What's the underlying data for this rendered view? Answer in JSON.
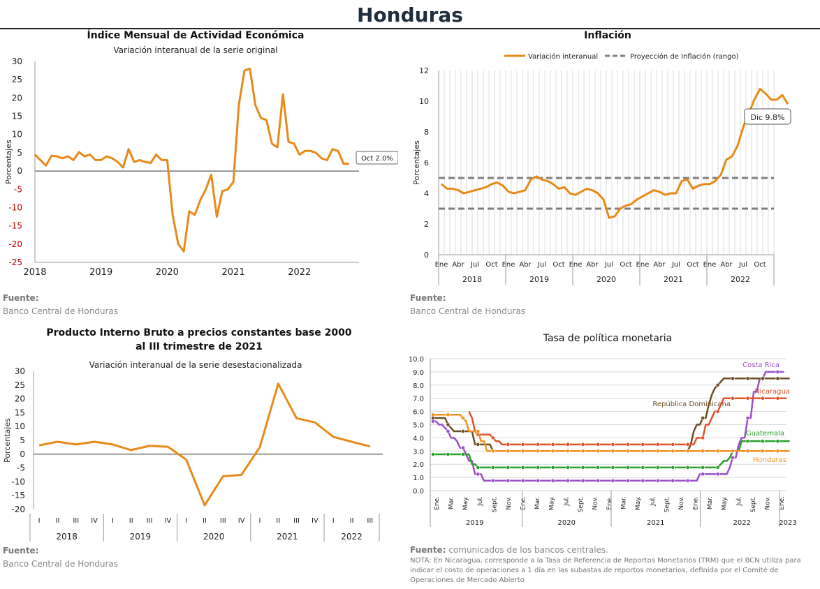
{
  "page": {
    "title": "Honduras"
  },
  "source_labels": {
    "fuente": "Fuente:",
    "bch": "Banco Central de Honduras",
    "tpm_source": "comunicados de los bancos centrales.",
    "nota": "NOTA: En Nicaragua, corresponde a la Tasa de Referencia de Reportos Monetarios (TRM) que el BCN utiliza para indicar el costo de operaciones a 1 día en las subastas de reportos monetarios, definida por el Comité de Operaciones de Mercado Abierto"
  },
  "chart_data": [
    {
      "id": "imae",
      "type": "line",
      "title": "Índice Mensual de  Actividad Económica",
      "subtitle": "Variación interanual de la serie original",
      "ylabel": "Porcentajes",
      "ylim": [
        -25,
        30
      ],
      "yticks": [
        -25,
        -20,
        -15,
        -10,
        -5,
        0,
        5,
        10,
        15,
        20,
        25,
        30
      ],
      "xlim": [
        2018.0,
        2022.9
      ],
      "xticks": [
        2018,
        2019,
        2020,
        2021,
        2022
      ],
      "color": "#e88a1a",
      "annotation": "Oct 2.0%",
      "x": [
        2018.0,
        2018.083,
        2018.167,
        2018.25,
        2018.333,
        2018.417,
        2018.5,
        2018.583,
        2018.667,
        2018.75,
        2018.833,
        2018.917,
        2019.0,
        2019.083,
        2019.167,
        2019.25,
        2019.333,
        2019.417,
        2019.5,
        2019.583,
        2019.667,
        2019.75,
        2019.833,
        2019.917,
        2020.0,
        2020.083,
        2020.167,
        2020.25,
        2020.333,
        2020.417,
        2020.5,
        2020.583,
        2020.667,
        2020.75,
        2020.833,
        2020.917,
        2021.0,
        2021.083,
        2021.167,
        2021.25,
        2021.333,
        2021.417,
        2021.5,
        2021.583,
        2021.667,
        2021.75,
        2021.833,
        2021.917,
        2022.0,
        2022.083,
        2022.167,
        2022.25,
        2022.333,
        2022.417,
        2022.5,
        2022.583,
        2022.667,
        2022.75
      ],
      "y": [
        4.5,
        3.0,
        1.5,
        4.2,
        4.0,
        3.5,
        4.0,
        3.0,
        5.2,
        4.0,
        4.5,
        3.0,
        3.0,
        4.0,
        3.5,
        2.5,
        1.0,
        6.0,
        2.5,
        3.0,
        2.5,
        2.2,
        4.5,
        3.0,
        3.0,
        -12.0,
        -20.0,
        -22.0,
        -11.0,
        -12.0,
        -8.0,
        -5.0,
        -1.0,
        -12.5,
        -5.5,
        -5.0,
        -3.0,
        18.0,
        27.5,
        28.0,
        18.0,
        14.5,
        14.0,
        7.5,
        6.5,
        21.0,
        8.0,
        7.5,
        4.5,
        5.5,
        5.5,
        5.0,
        3.5,
        3.0,
        6.0,
        5.5,
        2.0,
        2.0
      ]
    },
    {
      "id": "inflacion",
      "type": "line",
      "title": "Inflación",
      "ylabel": "Porcentajes",
      "ylim": [
        0,
        12
      ],
      "yticks": [
        0,
        2,
        4,
        6,
        8,
        10,
        12
      ],
      "month_labels": [
        "Ene",
        "Abr",
        "Jul",
        "Oct",
        "Ene",
        "Abr",
        "Jul",
        "Oct",
        "Ene",
        "Abr",
        "Jul",
        "Oct",
        "Ene",
        "Abr",
        "Jul",
        "Oct",
        "Ene",
        "Abr",
        "Jul",
        "Oct"
      ],
      "years": [
        "2018",
        "2019",
        "2020",
        "2021",
        "2022"
      ],
      "legend": [
        "Variación interanual",
        "Proyección de Inflación (rango)"
      ],
      "color": "#e88a1a",
      "range_low": 3.0,
      "range_high": 5.0,
      "annotation": "Dic 9.8%",
      "values": [
        4.6,
        4.3,
        4.3,
        4.2,
        4.0,
        4.1,
        4.2,
        4.3,
        4.4,
        4.6,
        4.7,
        4.5,
        4.1,
        4.0,
        4.1,
        4.2,
        4.9,
        5.1,
        4.9,
        4.8,
        4.6,
        4.3,
        4.4,
        4.0,
        3.9,
        4.1,
        4.3,
        4.2,
        4.0,
        3.6,
        2.4,
        2.5,
        3.0,
        3.2,
        3.3,
        3.6,
        3.8,
        4.0,
        4.2,
        4.1,
        3.9,
        4.0,
        4.0,
        4.8,
        4.9,
        4.3,
        4.5,
        4.6,
        4.6,
        4.8,
        5.2,
        6.2,
        6.4,
        7.1,
        8.3,
        9.2,
        10.1,
        10.8,
        10.5,
        10.1,
        10.1,
        10.4,
        9.8
      ]
    },
    {
      "id": "pib",
      "type": "line",
      "title_line1": "Producto Interno Bruto a precios constantes base 2000",
      "title_line2": "al III trimestre de 2021",
      "subtitle": "Variación interanual de la serie desestacionalizada",
      "ylabel": "Porcentajes",
      "ylim": [
        -20,
        30
      ],
      "yticks": [
        -20,
        -15,
        -10,
        -5,
        0,
        5,
        10,
        15,
        20,
        25,
        30
      ],
      "quarter_labels": [
        "I",
        "II",
        "III",
        "IV",
        "I",
        "II",
        "III",
        "IV",
        "I",
        "II",
        "III",
        "IV",
        "I",
        "II",
        "III",
        "IV",
        "I",
        "II",
        "III"
      ],
      "years": [
        "2018",
        "2019",
        "2020",
        "2021",
        "2022"
      ],
      "color": "#e88a1a",
      "values": [
        3.2,
        4.5,
        3.5,
        4.5,
        3.5,
        1.5,
        3.0,
        2.7,
        -2.0,
        -18.5,
        -8.0,
        -7.5,
        2.5,
        25.5,
        13.0,
        11.5,
        6.3,
        4.5,
        2.8
      ]
    },
    {
      "id": "tpm",
      "type": "line",
      "title": "Tasa de política monetaria",
      "ylim": [
        0,
        10
      ],
      "yticks": [
        "0.0",
        "1.0",
        "2.0",
        "3.0",
        "4.0",
        "5.0",
        "6.0",
        "7.0",
        "8.0",
        "9.0",
        "10.0"
      ],
      "month_labels": [
        "Ene.",
        "Mar.",
        "May.",
        "Jul.",
        "Sept.",
        "Nov.",
        "Ene.",
        "Mar.",
        "May.",
        "Jul.",
        "Sept.",
        "Nov.",
        "Ene.",
        "Mar.",
        "May.",
        "Jul.",
        "Sept.",
        "Nov.",
        "Ene.",
        "Mar.",
        "May.",
        "Jul.",
        "Sept.",
        "Nov.",
        "Ene."
      ],
      "years": [
        "2019",
        "2020",
        "2021",
        "2022",
        "2023"
      ],
      "series": [
        {
          "name": "Costa Rica",
          "color": "#9b4fc9",
          "values": [
            5.25,
            5.25,
            5.0,
            5.0,
            4.75,
            4.5,
            4.0,
            4.0,
            3.75,
            3.25,
            3.25,
            2.75,
            2.25,
            2.25,
            1.25,
            1.25,
            1.25,
            0.75,
            0.75,
            0.75,
            0.75,
            0.75,
            0.75,
            0.75,
            0.75,
            0.75,
            0.75,
            0.75,
            0.75,
            0.75,
            0.75,
            0.75,
            0.75,
            0.75,
            0.75,
            0.75,
            0.75,
            0.75,
            0.75,
            0.75,
            0.75,
            0.75,
            0.75,
            0.75,
            0.75,
            0.75,
            0.75,
            0.75,
            0.75,
            0.75,
            0.75,
            0.75,
            0.75,
            0.75,
            0.75,
            0.75,
            0.75,
            0.75,
            0.75,
            0.75,
            0.75,
            0.75,
            0.75,
            0.75,
            0.75,
            0.75,
            0.75,
            0.75,
            0.75,
            0.75,
            0.75,
            0.75,
            0.75,
            0.75,
            0.75,
            0.75,
            0.75,
            0.75,
            0.75,
            0.75,
            0.75,
            0.75,
            0.75,
            0.75,
            0.75,
            0.75,
            0.75,
            0.75,
            0.75,
            1.25,
            1.25,
            1.25,
            1.25,
            1.25,
            1.25,
            1.25,
            1.25,
            1.25,
            1.25,
            1.75,
            2.5,
            2.5,
            3.5,
            4.0,
            4.0,
            5.5,
            5.5,
            7.5,
            7.5,
            8.5,
            8.5,
            9.0,
            9.0,
            9.0,
            9.0,
            9.0,
            9.0,
            9.0
          ]
        },
        {
          "name": "República Dominicana",
          "color": "#6b4e23",
          "values": [
            5.5,
            5.5,
            5.5,
            5.5,
            5.5,
            5.0,
            4.75,
            4.5,
            4.5,
            4.5,
            4.5,
            4.5,
            4.5,
            4.5,
            3.5,
            3.5,
            3.5,
            3.5,
            3.5,
            3.5,
            3.0,
            3.0,
            3.0,
            3.0,
            3.0,
            3.0,
            3.0,
            3.0,
            3.0,
            3.0,
            3.0,
            3.0,
            3.0,
            3.0,
            3.0,
            3.0,
            3.0,
            3.0,
            3.0,
            3.0,
            3.0,
            3.0,
            3.0,
            3.0,
            3.0,
            3.0,
            3.0,
            3.0,
            3.0,
            3.0,
            3.0,
            3.0,
            3.0,
            3.0,
            3.0,
            3.0,
            3.0,
            3.0,
            3.0,
            3.0,
            3.0,
            3.0,
            3.0,
            3.0,
            3.0,
            3.0,
            3.0,
            3.0,
            3.0,
            3.0,
            3.0,
            3.0,
            3.0,
            3.0,
            3.0,
            3.0,
            3.0,
            3.0,
            3.0,
            3.0,
            3.0,
            3.0,
            3.0,
            3.0,
            3.0,
            3.0,
            3.5,
            4.5,
            5.0,
            5.0,
            5.5,
            5.5,
            6.5,
            7.25,
            7.75,
            8.0,
            8.25,
            8.5,
            8.5,
            8.5,
            8.5,
            8.5,
            8.5,
            8.5,
            8.5,
            8.5,
            8.5,
            8.5,
            8.5,
            8.5,
            8.5,
            8.5,
            8.5,
            8.5,
            8.5,
            8.5,
            8.5,
            8.5,
            8.5,
            8.5
          ]
        },
        {
          "name": "Nicaragua",
          "color": "#e0522a",
          "values": [
            null,
            null,
            null,
            null,
            null,
            null,
            null,
            null,
            null,
            null,
            null,
            null,
            6.0,
            5.5,
            4.5,
            4.25,
            4.25,
            4.25,
            4.25,
            4.25,
            4.0,
            3.75,
            3.75,
            3.5,
            3.5,
            3.5,
            3.5,
            3.5,
            3.5,
            3.5,
            3.5,
            3.5,
            3.5,
            3.5,
            3.5,
            3.5,
            3.5,
            3.5,
            3.5,
            3.5,
            3.5,
            3.5,
            3.5,
            3.5,
            3.5,
            3.5,
            3.5,
            3.5,
            3.5,
            3.5,
            3.5,
            3.5,
            3.5,
            3.5,
            3.5,
            3.5,
            3.5,
            3.5,
            3.5,
            3.5,
            3.5,
            3.5,
            3.5,
            3.5,
            3.5,
            3.5,
            3.5,
            3.5,
            3.5,
            3.5,
            3.5,
            3.5,
            3.5,
            3.5,
            3.5,
            3.5,
            3.5,
            3.5,
            3.5,
            3.5,
            3.5,
            3.5,
            3.5,
            3.5,
            3.5,
            3.5,
            3.5,
            3.5,
            4.0,
            4.0,
            4.0,
            5.0,
            5.0,
            5.5,
            6.0,
            6.0,
            6.5,
            7.0,
            7.0,
            7.0,
            7.0,
            7.0,
            7.0,
            7.0,
            7.0,
            7.0,
            7.0,
            7.0,
            7.0,
            7.0,
            7.0,
            7.0,
            7.0,
            7.0,
            7.0,
            7.0,
            7.0,
            7.0,
            7.0
          ]
        },
        {
          "name": "Guatemala",
          "color": "#2aa02a",
          "values": [
            2.75,
            2.75,
            2.75,
            2.75,
            2.75,
            2.75,
            2.75,
            2.75,
            2.75,
            2.75,
            2.75,
            2.75,
            2.75,
            2.0,
            2.0,
            1.75,
            1.75,
            1.75,
            1.75,
            1.75,
            1.75,
            1.75,
            1.75,
            1.75,
            1.75,
            1.75,
            1.75,
            1.75,
            1.75,
            1.75,
            1.75,
            1.75,
            1.75,
            1.75,
            1.75,
            1.75,
            1.75,
            1.75,
            1.75,
            1.75,
            1.75,
            1.75,
            1.75,
            1.75,
            1.75,
            1.75,
            1.75,
            1.75,
            1.75,
            1.75,
            1.75,
            1.75,
            1.75,
            1.75,
            1.75,
            1.75,
            1.75,
            1.75,
            1.75,
            1.75,
            1.75,
            1.75,
            1.75,
            1.75,
            1.75,
            1.75,
            1.75,
            1.75,
            1.75,
            1.75,
            1.75,
            1.75,
            1.75,
            1.75,
            1.75,
            1.75,
            1.75,
            1.75,
            1.75,
            1.75,
            1.75,
            1.75,
            1.75,
            1.75,
            1.75,
            1.75,
            1.75,
            1.75,
            1.75,
            1.75,
            1.75,
            1.75,
            1.75,
            1.75,
            1.75,
            1.75,
            2.0,
            2.25,
            2.25,
            2.5,
            3.0,
            3.0,
            3.0,
            3.75,
            3.75,
            3.75,
            3.75,
            3.75,
            3.75,
            3.75,
            3.75,
            3.75,
            3.75,
            3.75,
            3.75,
            3.75,
            3.75,
            3.75,
            3.75,
            3.75
          ]
        },
        {
          "name": "Honduras",
          "color": "#f0921e",
          "values": [
            5.75,
            5.75,
            5.75,
            5.75,
            5.75,
            5.75,
            5.75,
            5.75,
            5.75,
            5.75,
            5.5,
            5.25,
            4.5,
            4.5,
            4.5,
            4.5,
            3.75,
            3.75,
            3.0,
            3.0,
            3.0,
            3.0,
            3.0,
            3.0,
            3.0,
            3.0,
            3.0,
            3.0,
            3.0,
            3.0,
            3.0,
            3.0,
            3.0,
            3.0,
            3.0,
            3.0,
            3.0,
            3.0,
            3.0,
            3.0,
            3.0,
            3.0,
            3.0,
            3.0,
            3.0,
            3.0,
            3.0,
            3.0,
            3.0,
            3.0,
            3.0,
            3.0,
            3.0,
            3.0,
            3.0,
            3.0,
            3.0,
            3.0,
            3.0,
            3.0,
            3.0,
            3.0,
            3.0,
            3.0,
            3.0,
            3.0,
            3.0,
            3.0,
            3.0,
            3.0,
            3.0,
            3.0,
            3.0,
            3.0,
            3.0,
            3.0,
            3.0,
            3.0,
            3.0,
            3.0,
            3.0,
            3.0,
            3.0,
            3.0,
            3.0,
            3.0,
            3.0,
            3.0,
            3.0,
            3.0,
            3.0,
            3.0,
            3.0,
            3.0,
            3.0,
            3.0,
            3.0,
            3.0,
            3.0,
            3.0,
            3.0,
            3.0,
            3.0,
            3.0,
            3.0,
            3.0,
            3.0,
            3.0,
            3.0,
            3.0,
            3.0,
            3.0,
            3.0,
            3.0,
            3.0,
            3.0,
            3.0,
            3.0,
            3.0,
            3.0
          ]
        }
      ]
    }
  ]
}
